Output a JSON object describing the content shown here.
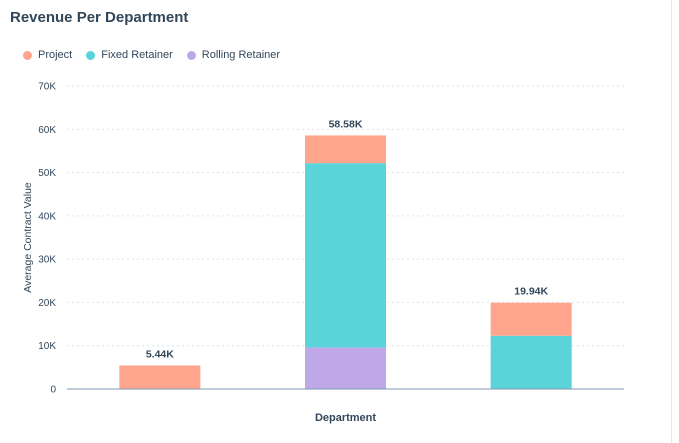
{
  "page": {
    "title": "Revenue Per Department"
  },
  "chart_data": {
    "type": "bar",
    "stacked": true,
    "title": "Revenue Per Department",
    "xlabel": "Department",
    "ylabel": "Average Contract Value",
    "ylim": [
      0,
      70000
    ],
    "yticks": [
      0,
      10000,
      20000,
      30000,
      40000,
      50000,
      60000,
      70000
    ],
    "ytick_labels": [
      "0",
      "10K",
      "20K",
      "30K",
      "40K",
      "50K",
      "60K",
      "70K"
    ],
    "grid": true,
    "legend_position": "top-left",
    "categories": [
      "",
      "",
      ""
    ],
    "series": [
      {
        "name": "Project",
        "color": "#ffa58d",
        "values": [
          5440,
          6400,
          7640
        ]
      },
      {
        "name": "Fixed Retainer",
        "color": "#5ad4d9",
        "values": [
          0,
          42580,
          12300
        ]
      },
      {
        "name": "Rolling Retainer",
        "color": "#bea8e8",
        "values": [
          0,
          9600,
          0
        ]
      }
    ],
    "stack_order": [
      "Rolling Retainer",
      "Fixed Retainer",
      "Project"
    ],
    "totals": [
      5440,
      58580,
      19940
    ],
    "total_labels": [
      "5.44K",
      "58.58K",
      "19.94K"
    ]
  }
}
